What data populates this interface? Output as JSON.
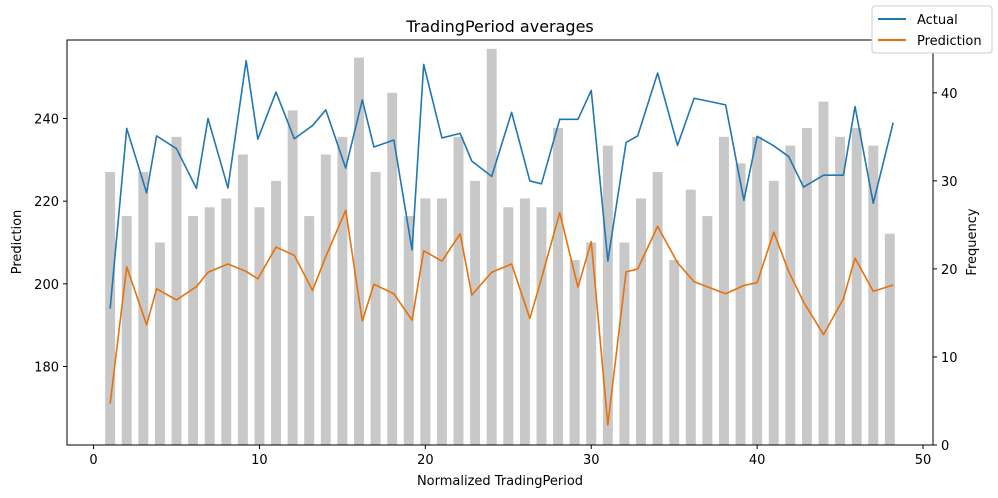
{
  "chart_data": {
    "type": "line",
    "title": "TradingPeriod averages",
    "xlabel": "Normalized TradingPeriod",
    "ylabel": "Prediction",
    "y2label": "Frequency",
    "xlim": [
      -1.6,
      50.6
    ],
    "ylim": [
      161,
      259
    ],
    "y2lim": [
      0,
      46
    ],
    "xticks": [
      0,
      10,
      20,
      30,
      40,
      50
    ],
    "yticks": [
      180,
      200,
      220,
      240
    ],
    "y2ticks": [
      0,
      10,
      20,
      30,
      40
    ],
    "grid": false,
    "legend_position": "top-right",
    "colors": {
      "actual": "#1f77b4",
      "prediction": "#e8710a",
      "bars": "#c8c8c8"
    },
    "x": [
      1,
      2,
      3.2,
      3.8,
      5,
      6.2,
      6.9,
      8.1,
      9.2,
      9.9,
      11,
      12.1,
      13.2,
      14,
      15.2,
      16.2,
      16.9,
      18.1,
      19.2,
      19.9,
      21,
      22.1,
      22.8,
      24,
      25.2,
      26.3,
      27,
      28.1,
      29.2,
      30,
      31,
      32.1,
      32.8,
      34,
      35.2,
      36.2,
      38.1,
      39.2,
      40,
      41,
      41.9,
      42.8,
      44,
      45.2,
      45.9,
      47,
      48.2
    ],
    "series": [
      {
        "name": "Actual",
        "values": [
          194,
          237.6,
          222,
          235.8,
          232.7,
          223.1,
          240,
          223.2,
          254,
          235,
          246.4,
          235.1,
          238.3,
          242.1,
          228,
          244.5,
          233.1,
          234.8,
          208.2,
          253.1,
          235.3,
          236.4,
          229.7,
          226,
          241.5,
          224.9,
          224.2,
          239.8,
          239.8,
          246.8,
          205.5,
          234.2,
          235.8,
          251,
          233.5,
          244.9,
          243.3,
          220.2,
          235.7,
          233.4,
          230.8,
          223.4,
          226.3,
          226.3,
          242.9,
          219.5,
          239
        ]
      },
      {
        "name": "Prediction",
        "values": [
          171,
          204.1,
          190.1,
          198.8,
          196.1,
          199.3,
          202.8,
          204.8,
          203,
          201.2,
          208.9,
          206.9,
          198.4,
          206.6,
          217.8,
          191,
          199.9,
          197.6,
          191.2,
          208,
          205.5,
          212.1,
          197.3,
          202.8,
          204.8,
          191.6,
          201.3,
          217.2,
          199.2,
          210.2,
          165.9,
          202.9,
          203.6,
          213.9,
          205.1,
          200.5,
          197.6,
          199.6,
          200.3,
          212.5,
          203,
          195.6,
          187.7,
          196.4,
          206.2,
          198.2,
          199.7
        ]
      }
    ],
    "frequency_bars": {
      "x": [
        1,
        2,
        3,
        4,
        5,
        6,
        7,
        8,
        9,
        10,
        11,
        12,
        13,
        14,
        15,
        16,
        17,
        18,
        19,
        20,
        21,
        22,
        23,
        24,
        25,
        26,
        27,
        28,
        29,
        30,
        31,
        32,
        33,
        34,
        35,
        36,
        37,
        38,
        39,
        40,
        41,
        42,
        43,
        44,
        45,
        46,
        47,
        48
      ],
      "values": [
        31,
        26,
        31,
        23,
        35,
        26,
        27,
        28,
        33,
        27,
        30,
        38,
        26,
        33,
        35,
        44,
        31,
        40,
        26,
        28,
        28,
        35,
        30,
        45,
        27,
        28,
        27,
        36,
        21,
        23,
        34,
        23,
        28,
        31,
        21,
        29,
        26,
        35,
        32,
        35,
        30,
        34,
        36,
        39,
        35,
        36,
        34,
        24
      ]
    }
  }
}
